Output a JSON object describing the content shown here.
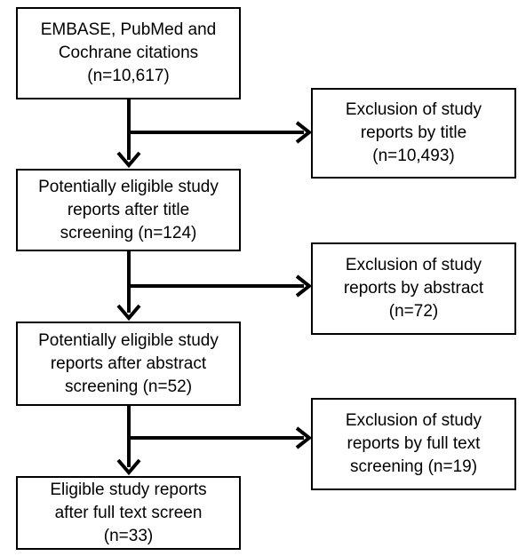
{
  "flow": {
    "boxes": [
      {
        "lines": [
          "EMBASE, PubMed and",
          "Cochrane citations",
          "(n=10,617)"
        ]
      },
      {
        "lines": [
          "Potentially eligible study",
          "reports after title",
          "screening (n=124)"
        ]
      },
      {
        "lines": [
          "Potentially eligible study",
          "reports after abstract",
          "screening (n=52)"
        ]
      },
      {
        "lines": [
          "Eligible study reports",
          "after full text screen",
          "(n=33)"
        ]
      }
    ],
    "exclusions": [
      {
        "lines": [
          "Exclusion of study",
          "reports by title",
          "(n=10,493)"
        ]
      },
      {
        "lines": [
          "Exclusion of study",
          "reports by abstract",
          "(n=72)"
        ]
      },
      {
        "lines": [
          "Exclusion of study",
          "reports by full text",
          "screening (n=19)"
        ]
      }
    ]
  },
  "colors": {
    "stroke": "#000000",
    "background": "#ffffff"
  }
}
